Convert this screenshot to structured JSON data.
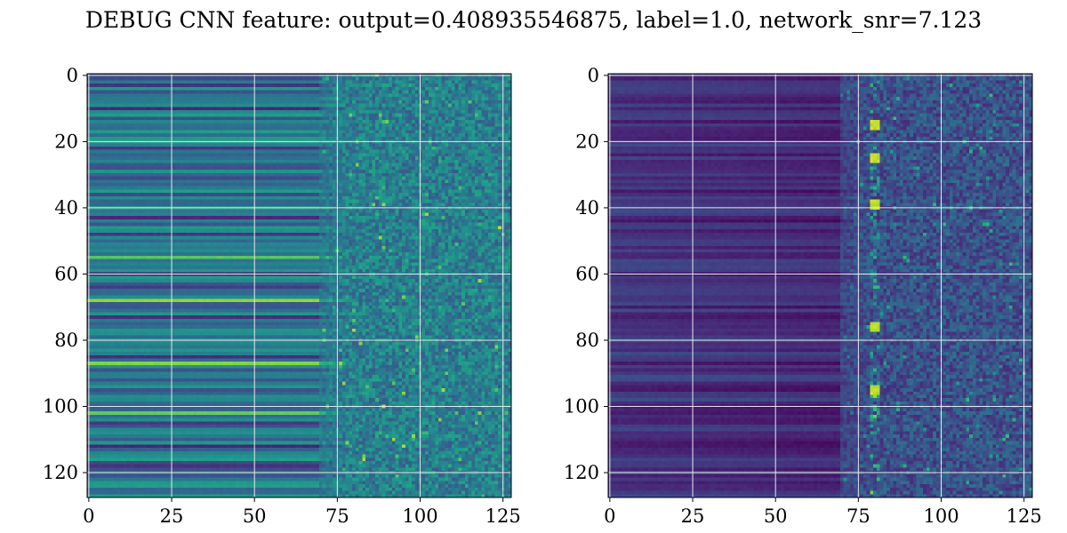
{
  "title": "DEBUG CNN feature: output=0.408935546875, label=1.0, network_snr=7.123",
  "chart_data": [
    {
      "type": "heatmap",
      "title": "",
      "xlabel": "",
      "ylabel": "",
      "shape": [
        128,
        128
      ],
      "xlim": [
        0,
        127
      ],
      "ylim": [
        127,
        0
      ],
      "xticks": [
        "0",
        "25",
        "50",
        "75",
        "100",
        "125"
      ],
      "yticks": [
        "0",
        "20",
        "40",
        "60",
        "80",
        "100",
        "120"
      ],
      "colormap": "viridis",
      "grid": true,
      "description_of_pattern": {
        "left_region_cols": [
          0,
          70
        ],
        "transition_col": 75,
        "bright_rows": [
          55,
          68,
          87,
          102
        ],
        "dark_rows": [
          3,
          10,
          22,
          43,
          48,
          60,
          64,
          73,
          85,
          105,
          112,
          118
        ]
      }
    },
    {
      "type": "heatmap",
      "title": "",
      "xlabel": "",
      "ylabel": "",
      "shape": [
        128,
        128
      ],
      "xlim": [
        0,
        127
      ],
      "ylim": [
        127,
        0
      ],
      "xticks": [
        "0",
        "25",
        "50",
        "75",
        "100",
        "125"
      ],
      "yticks": [
        "0",
        "20",
        "40",
        "60",
        "80",
        "100",
        "120"
      ],
      "colormap": "viridis",
      "grid": true,
      "description_of_pattern": {
        "left_region_cols": [
          0,
          70
        ],
        "transition_col": 75,
        "hotspot_col": 80,
        "hotspot_rows": [
          15,
          25,
          39,
          76,
          95
        ]
      }
    }
  ]
}
